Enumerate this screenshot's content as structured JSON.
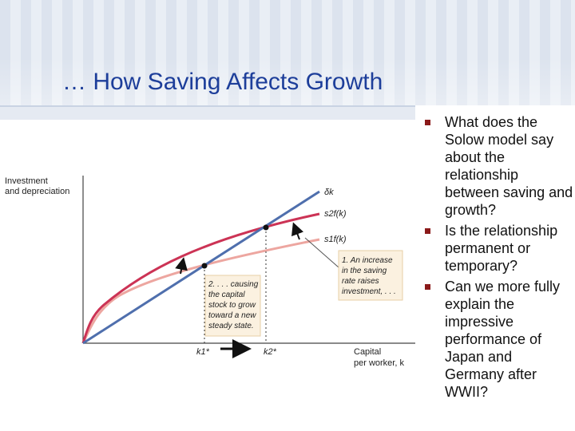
{
  "slide": {
    "title": "… How Saving Affects Growth",
    "bullets": [
      "What does the Solow model say about the relationship between saving and growth?",
      "Is the relationship permanent or temporary?",
      "Can we more fully explain the impressive performance of Japan and Germany after WWII?"
    ]
  },
  "diagram": {
    "y_axis_label_1": "Investment",
    "y_axis_label_2": "and depreciation",
    "x_axis_label_1": "Capital",
    "x_axis_label_2": "per worker, k",
    "curve_delta_k": "δk",
    "curve_s2": "s2f(k)",
    "curve_s1": "s1f(k)",
    "k1_label": "k1*",
    "k2_label": "k2*",
    "note1_lines": [
      "1. An increase",
      "in the saving",
      "rate raises",
      "investment, . . ."
    ],
    "note2_lines": [
      "2. . . . causing",
      "the capital",
      "stock to grow",
      "toward a new",
      "steady state."
    ],
    "colors": {
      "delta_line": "#4f6fad",
      "s2_curve": "#cc3355",
      "s1_curve": "#eda6a0",
      "note_bg": "#fbf1e0",
      "title": "#1d3e9a"
    }
  }
}
